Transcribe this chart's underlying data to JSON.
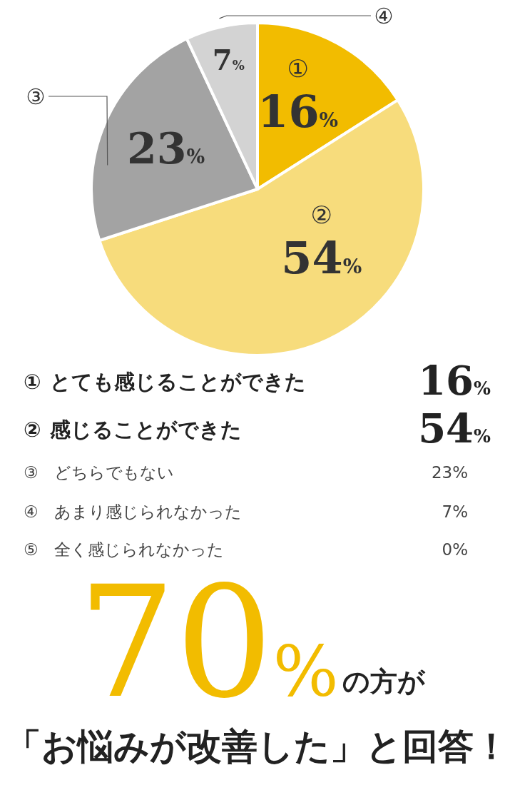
{
  "chart_data": {
    "type": "pie",
    "categories": [
      "①",
      "②",
      "③",
      "④",
      "⑤"
    ],
    "values": [
      16,
      54,
      23,
      7,
      0
    ],
    "colors": [
      "#f2bc00",
      "#f7dc7c",
      "#a3a3a3",
      "#d3d3d3",
      null
    ],
    "value_labels": [
      "16%",
      "54%",
      "23%",
      "7%",
      "0%"
    ],
    "annotations": [
      "とても感じることができた",
      "感じることができた",
      "どちらでもない",
      "あまり感じられなかった",
      "全く感じられなかった",
      "70%",
      "の方が",
      "「お悩みが改善した」と回答！"
    ]
  }
}
